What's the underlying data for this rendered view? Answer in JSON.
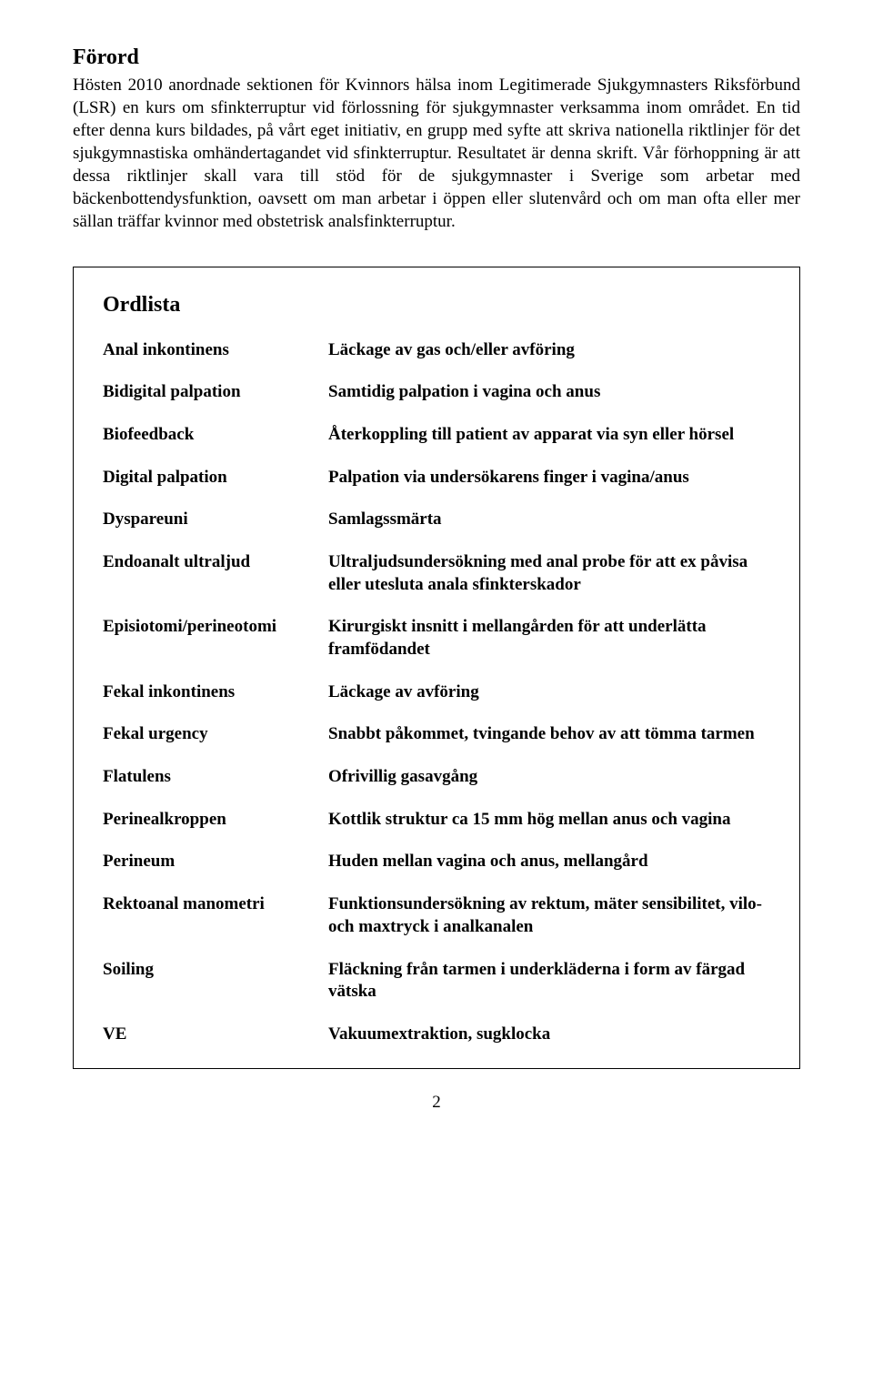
{
  "foreword": {
    "heading": "Förord",
    "body": "Hösten 2010 anordnade sektionen för Kvinnors hälsa inom Legitimerade Sjukgymnasters Riksförbund (LSR) en kurs om sfinkterruptur vid förlossning för sjukgymnaster verksamma inom området. En tid efter denna kurs bildades, på vårt eget initiativ, en grupp med syfte att skriva nationella riktlinjer för det sjukgymnastiska omhändertagandet vid sfinkterruptur. Resultatet är denna skrift. Vår förhoppning är att dessa riktlinjer skall vara till stöd för de sjukgymnaster i Sverige som arbetar med bäckenbottendysfunktion, oavsett om man arbetar i öppen eller slutenvård och om man ofta eller mer sällan träffar kvinnor med obstetrisk analsfinkterruptur."
  },
  "glossary": {
    "heading": "Ordlista",
    "entries": [
      {
        "term": "Anal inkontinens",
        "def": "Läckage av gas och/eller avföring"
      },
      {
        "term": "Bidigital palpation",
        "def": "Samtidig palpation i vagina och anus"
      },
      {
        "term": "Biofeedback",
        "def": "Återkoppling till patient av apparat via syn eller hörsel"
      },
      {
        "term": "Digital palpation",
        "def": "Palpation via undersökarens finger i vagina/anus"
      },
      {
        "term": "Dyspareuni",
        "def": "Samlagssmärta"
      },
      {
        "term": "Endoanalt ultraljud",
        "def": "Ultraljudsundersökning med anal probe för att ex påvisa eller utesluta anala sfinkterskador"
      },
      {
        "term": "Episiotomi/perineotomi",
        "def": "Kirurgiskt insnitt i mellangården för att underlätta framfödandet"
      },
      {
        "term": "Fekal inkontinens",
        "def": "Läckage av avföring"
      },
      {
        "term": "Fekal urgency",
        "def": "Snabbt påkommet, tvingande behov av att tömma tarmen"
      },
      {
        "term": "Flatulens",
        "def": "Ofrivillig gasavgång"
      },
      {
        "term": "Perinealkroppen",
        "def": "Kottlik struktur ca 15 mm hög mellan anus och vagina"
      },
      {
        "term": "Perineum",
        "def": "Huden mellan vagina och anus, mellangård"
      },
      {
        "term": "Rektoanal manometri",
        "def": "Funktionsundersökning av rektum, mäter sensibilitet, vilo- och maxtryck i analkanalen"
      },
      {
        "term": "Soiling",
        "def": "Fläckning från tarmen i underkläderna i form av färgad vätska"
      },
      {
        "term": "VE",
        "def": "Vakuumextraktion, sugklocka"
      }
    ]
  },
  "page_number": "2"
}
